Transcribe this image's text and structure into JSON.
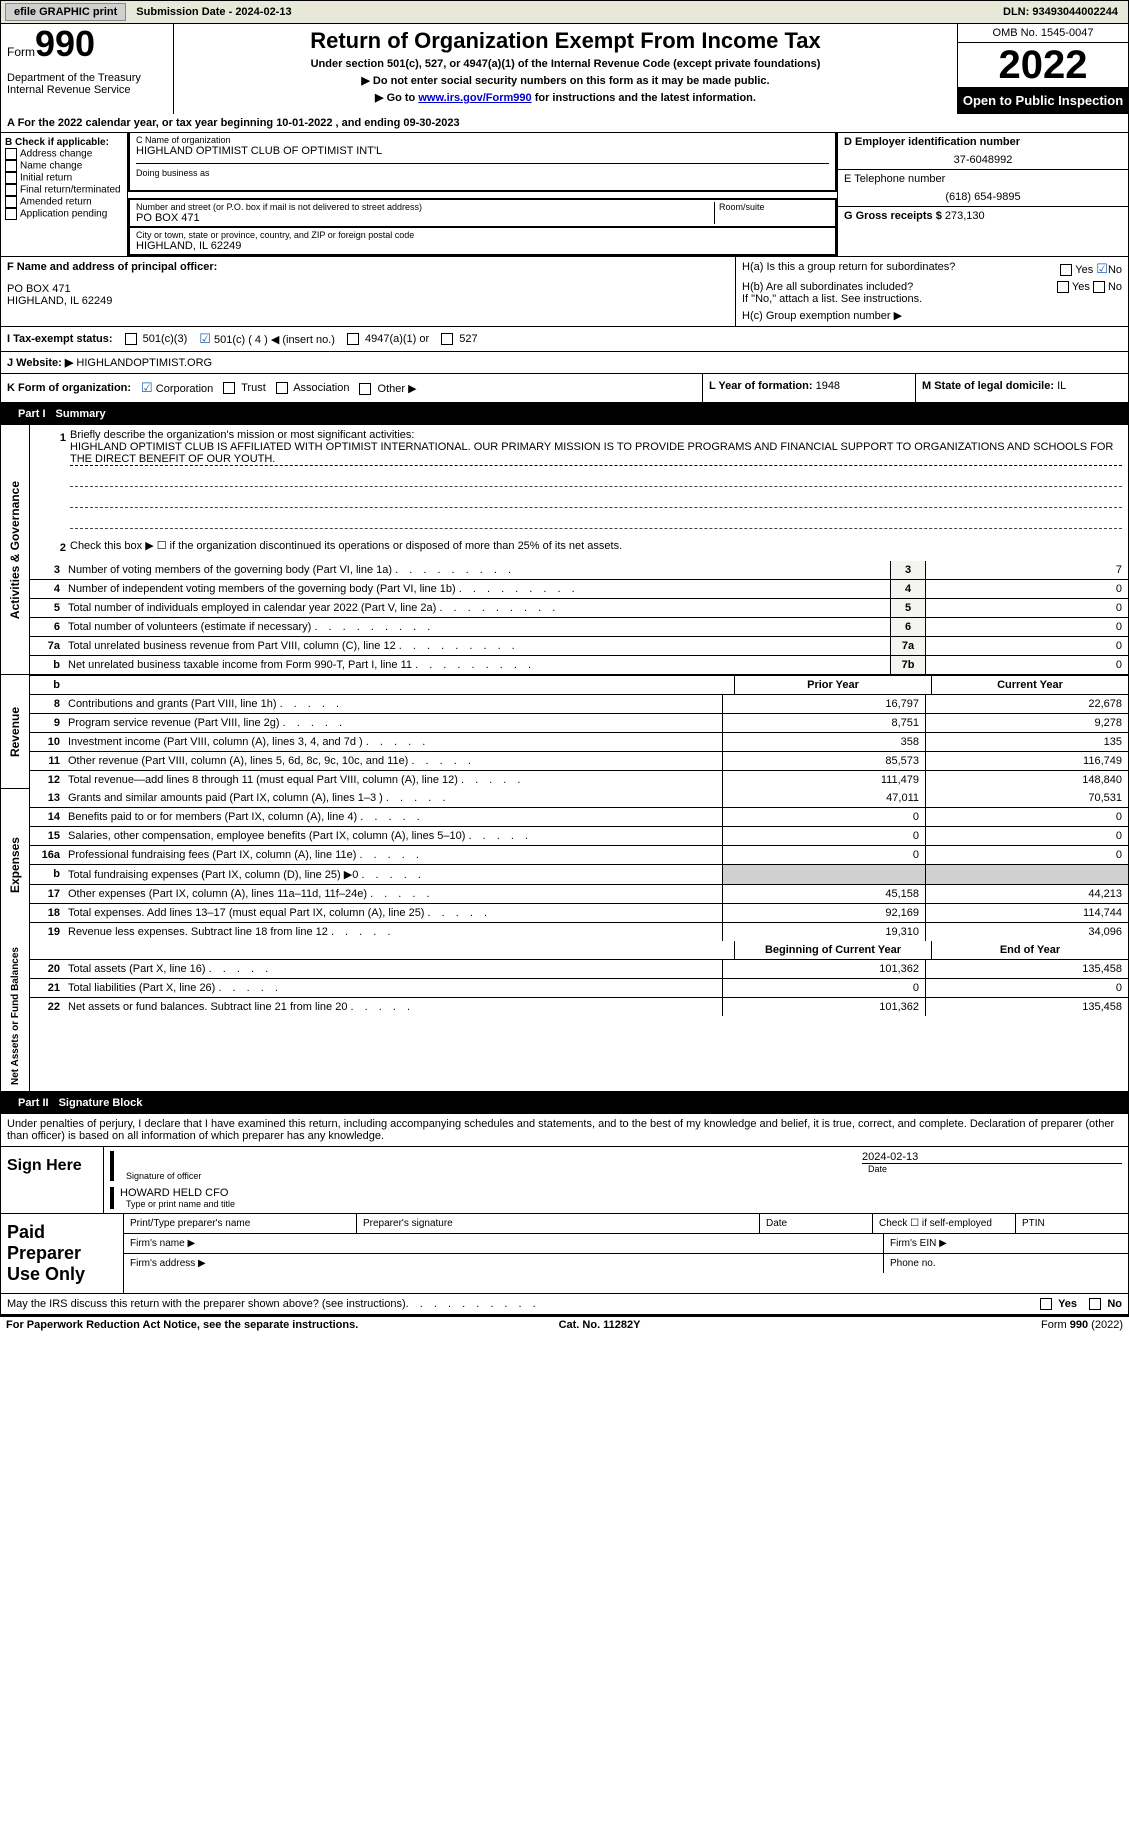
{
  "topbar": {
    "efile": "efile GRAPHIC print",
    "submission": "Submission Date - 2024-02-13",
    "dln": "DLN: 93493044002244"
  },
  "header": {
    "form_label": "Form",
    "form_number": "990",
    "title": "Return of Organization Exempt From Income Tax",
    "subtitle1": "Under section 501(c), 527, or 4947(a)(1) of the Internal Revenue Code (except private foundations)",
    "subtitle2": "▶ Do not enter social security numbers on this form as it may be made public.",
    "subtitle3_pre": "▶ Go to ",
    "subtitle3_link": "www.irs.gov/Form990",
    "subtitle3_post": " for instructions and the latest information.",
    "dept": "Department of the Treasury",
    "irs": "Internal Revenue Service",
    "omb": "OMB No. 1545-0047",
    "year": "2022",
    "otp": "Open to Public Inspection"
  },
  "lineA": "A For the 2022 calendar year, or tax year beginning 10-01-2022    , and ending 09-30-2023",
  "sectionB": {
    "label": "B Check if applicable:",
    "items": [
      "Address change",
      "Name change",
      "Initial return",
      "Final return/terminated",
      "Amended return",
      "Application pending"
    ]
  },
  "sectionC": {
    "name_label": "C Name of organization",
    "name": "HIGHLAND OPTIMIST CLUB OF OPTIMIST INT'L",
    "dba_label": "Doing business as",
    "street_label": "Number and street (or P.O. box if mail is not delivered to street address)",
    "room_label": "Room/suite",
    "street": "PO BOX 471",
    "city_label": "City or town, state or province, country, and ZIP or foreign postal code",
    "city": "HIGHLAND, IL  62249"
  },
  "sectionD": {
    "ein_label": "D Employer identification number",
    "ein": "37-6048992",
    "tel_label": "E Telephone number",
    "tel": "(618) 654-9895",
    "gross_label": "G Gross receipts $",
    "gross": "273,130"
  },
  "sectionF": {
    "label": "F  Name and address of principal officer:",
    "addr1": "PO BOX 471",
    "addr2": "HIGHLAND, IL  62249"
  },
  "sectionH": {
    "ha": "H(a)  Is this a group return for subordinates?",
    "hb": "H(b)  Are all subordinates included?",
    "hb_note": "If \"No,\" attach a list. See instructions.",
    "hc": "H(c)  Group exemption number ▶",
    "yes": "Yes",
    "no": "No"
  },
  "lineI": {
    "label": "I    Tax-exempt status:",
    "opts": [
      "501(c)(3)",
      "501(c) ( 4 ) ◀ (insert no.)",
      "4947(a)(1) or",
      "527"
    ]
  },
  "lineJ": {
    "label": "J   Website: ▶",
    "value": "HIGHLANDOPTIMIST.ORG"
  },
  "lineK": {
    "label": "K Form of organization:",
    "opts": [
      "Corporation",
      "Trust",
      "Association",
      "Other ▶"
    ]
  },
  "lineL": {
    "label": "L Year of formation:",
    "value": "1948"
  },
  "lineM": {
    "label": "M State of legal domicile:",
    "value": "IL"
  },
  "part1": {
    "header_num": "Part I",
    "header_title": "Summary",
    "sections": {
      "activities_label": "Activities & Governance",
      "revenue_label": "Revenue",
      "expenses_label": "Expenses",
      "netassets_label": "Net Assets or Fund Balances"
    },
    "line1": {
      "text": "Briefly describe the organization's mission or most significant activities:",
      "mission": "HIGHLAND OPTIMIST CLUB IS AFFILIATED WITH OPTIMIST INTERNATIONAL. OUR PRIMARY MISSION IS TO PROVIDE PROGRAMS AND FINANCIAL SUPPORT TO ORGANIZATIONS AND SCHOOLS FOR THE DIRECT BENEFIT OF OUR YOUTH."
    },
    "line2": "Check this box ▶ ☐ if the organization discontinued its operations or disposed of more than 25% of its net assets.",
    "rows_gov": [
      {
        "n": "3",
        "t": "Number of voting members of the governing body (Part VI, line 1a)",
        "box": "3",
        "v": "7"
      },
      {
        "n": "4",
        "t": "Number of independent voting members of the governing body (Part VI, line 1b)",
        "box": "4",
        "v": "0"
      },
      {
        "n": "5",
        "t": "Total number of individuals employed in calendar year 2022 (Part V, line 2a)",
        "box": "5",
        "v": "0"
      },
      {
        "n": "6",
        "t": "Total number of volunteers (estimate if necessary)",
        "box": "6",
        "v": "0"
      },
      {
        "n": "7a",
        "t": "Total unrelated business revenue from Part VIII, column (C), line 12",
        "box": "7a",
        "v": "0"
      },
      {
        "n": "b",
        "t": "Net unrelated business taxable income from Form 990-T, Part I, line 11",
        "box": "7b",
        "v": "0"
      }
    ],
    "col_headers": {
      "prior": "Prior Year",
      "current": "Current Year",
      "boy": "Beginning of Current Year",
      "eoy": "End of Year"
    },
    "rows_rev": [
      {
        "n": "8",
        "t": "Contributions and grants (Part VIII, line 1h)",
        "p": "16,797",
        "c": "22,678"
      },
      {
        "n": "9",
        "t": "Program service revenue (Part VIII, line 2g)",
        "p": "8,751",
        "c": "9,278"
      },
      {
        "n": "10",
        "t": "Investment income (Part VIII, column (A), lines 3, 4, and 7d )",
        "p": "358",
        "c": "135"
      },
      {
        "n": "11",
        "t": "Other revenue (Part VIII, column (A), lines 5, 6d, 8c, 9c, 10c, and 11e)",
        "p": "85,573",
        "c": "116,749"
      },
      {
        "n": "12",
        "t": "Total revenue—add lines 8 through 11 (must equal Part VIII, column (A), line 12)",
        "p": "111,479",
        "c": "148,840"
      }
    ],
    "rows_exp": [
      {
        "n": "13",
        "t": "Grants and similar amounts paid (Part IX, column (A), lines 1–3 )",
        "p": "47,011",
        "c": "70,531"
      },
      {
        "n": "14",
        "t": "Benefits paid to or for members (Part IX, column (A), line 4)",
        "p": "0",
        "c": "0"
      },
      {
        "n": "15",
        "t": "Salaries, other compensation, employee benefits (Part IX, column (A), lines 5–10)",
        "p": "0",
        "c": "0"
      },
      {
        "n": "16a",
        "t": "Professional fundraising fees (Part IX, column (A), line 11e)",
        "p": "0",
        "c": "0"
      },
      {
        "n": "b",
        "t": "Total fundraising expenses (Part IX, column (D), line 25) ▶0",
        "p": "",
        "c": "",
        "shaded": true
      },
      {
        "n": "17",
        "t": "Other expenses (Part IX, column (A), lines 11a–11d, 11f–24e)",
        "p": "45,158",
        "c": "44,213"
      },
      {
        "n": "18",
        "t": "Total expenses. Add lines 13–17 (must equal Part IX, column (A), line 25)",
        "p": "92,169",
        "c": "114,744"
      },
      {
        "n": "19",
        "t": "Revenue less expenses. Subtract line 18 from line 12",
        "p": "19,310",
        "c": "34,096"
      }
    ],
    "rows_net": [
      {
        "n": "20",
        "t": "Total assets (Part X, line 16)",
        "p": "101,362",
        "c": "135,458"
      },
      {
        "n": "21",
        "t": "Total liabilities (Part X, line 26)",
        "p": "0",
        "c": "0"
      },
      {
        "n": "22",
        "t": "Net assets or fund balances. Subtract line 21 from line 20",
        "p": "101,362",
        "c": "135,458"
      }
    ]
  },
  "part2": {
    "header_num": "Part II",
    "header_title": "Signature Block",
    "declaration": "Under penalties of perjury, I declare that I have examined this return, including accompanying schedules and statements, and to the best of my knowledge and belief, it is true, correct, and complete. Declaration of preparer (other than officer) is based on all information of which preparer has any knowledge.",
    "sign_here": "Sign Here",
    "sig_of_officer": "Signature of officer",
    "date_label": "Date",
    "sig_date": "2024-02-13",
    "officer_name": "HOWARD HELD  CFO",
    "type_name": "Type or print name and title",
    "paid": "Paid Preparer Use Only",
    "paid_headers": [
      "Print/Type preparer's name",
      "Preparer's signature",
      "Date",
      "Check ☐ if self-employed",
      "PTIN"
    ],
    "firm_name": "Firm's name   ▶",
    "firm_ein": "Firm's EIN ▶",
    "firm_addr": "Firm's address ▶",
    "phone": "Phone no.",
    "may_irs": "May the IRS discuss this return with the preparer shown above? (see instructions)",
    "yes": "Yes",
    "no": "No"
  },
  "footer": {
    "left": "For Paperwork Reduction Act Notice, see the separate instructions.",
    "mid": "Cat. No. 11282Y",
    "right": "Form 990 (2022)"
  },
  "colors": {
    "bg": "#ffffff",
    "text": "#000000",
    "link": "#0000cc",
    "topbar_bg": "#e8e8d8",
    "black": "#000000",
    "shade": "#d0d0d0"
  }
}
